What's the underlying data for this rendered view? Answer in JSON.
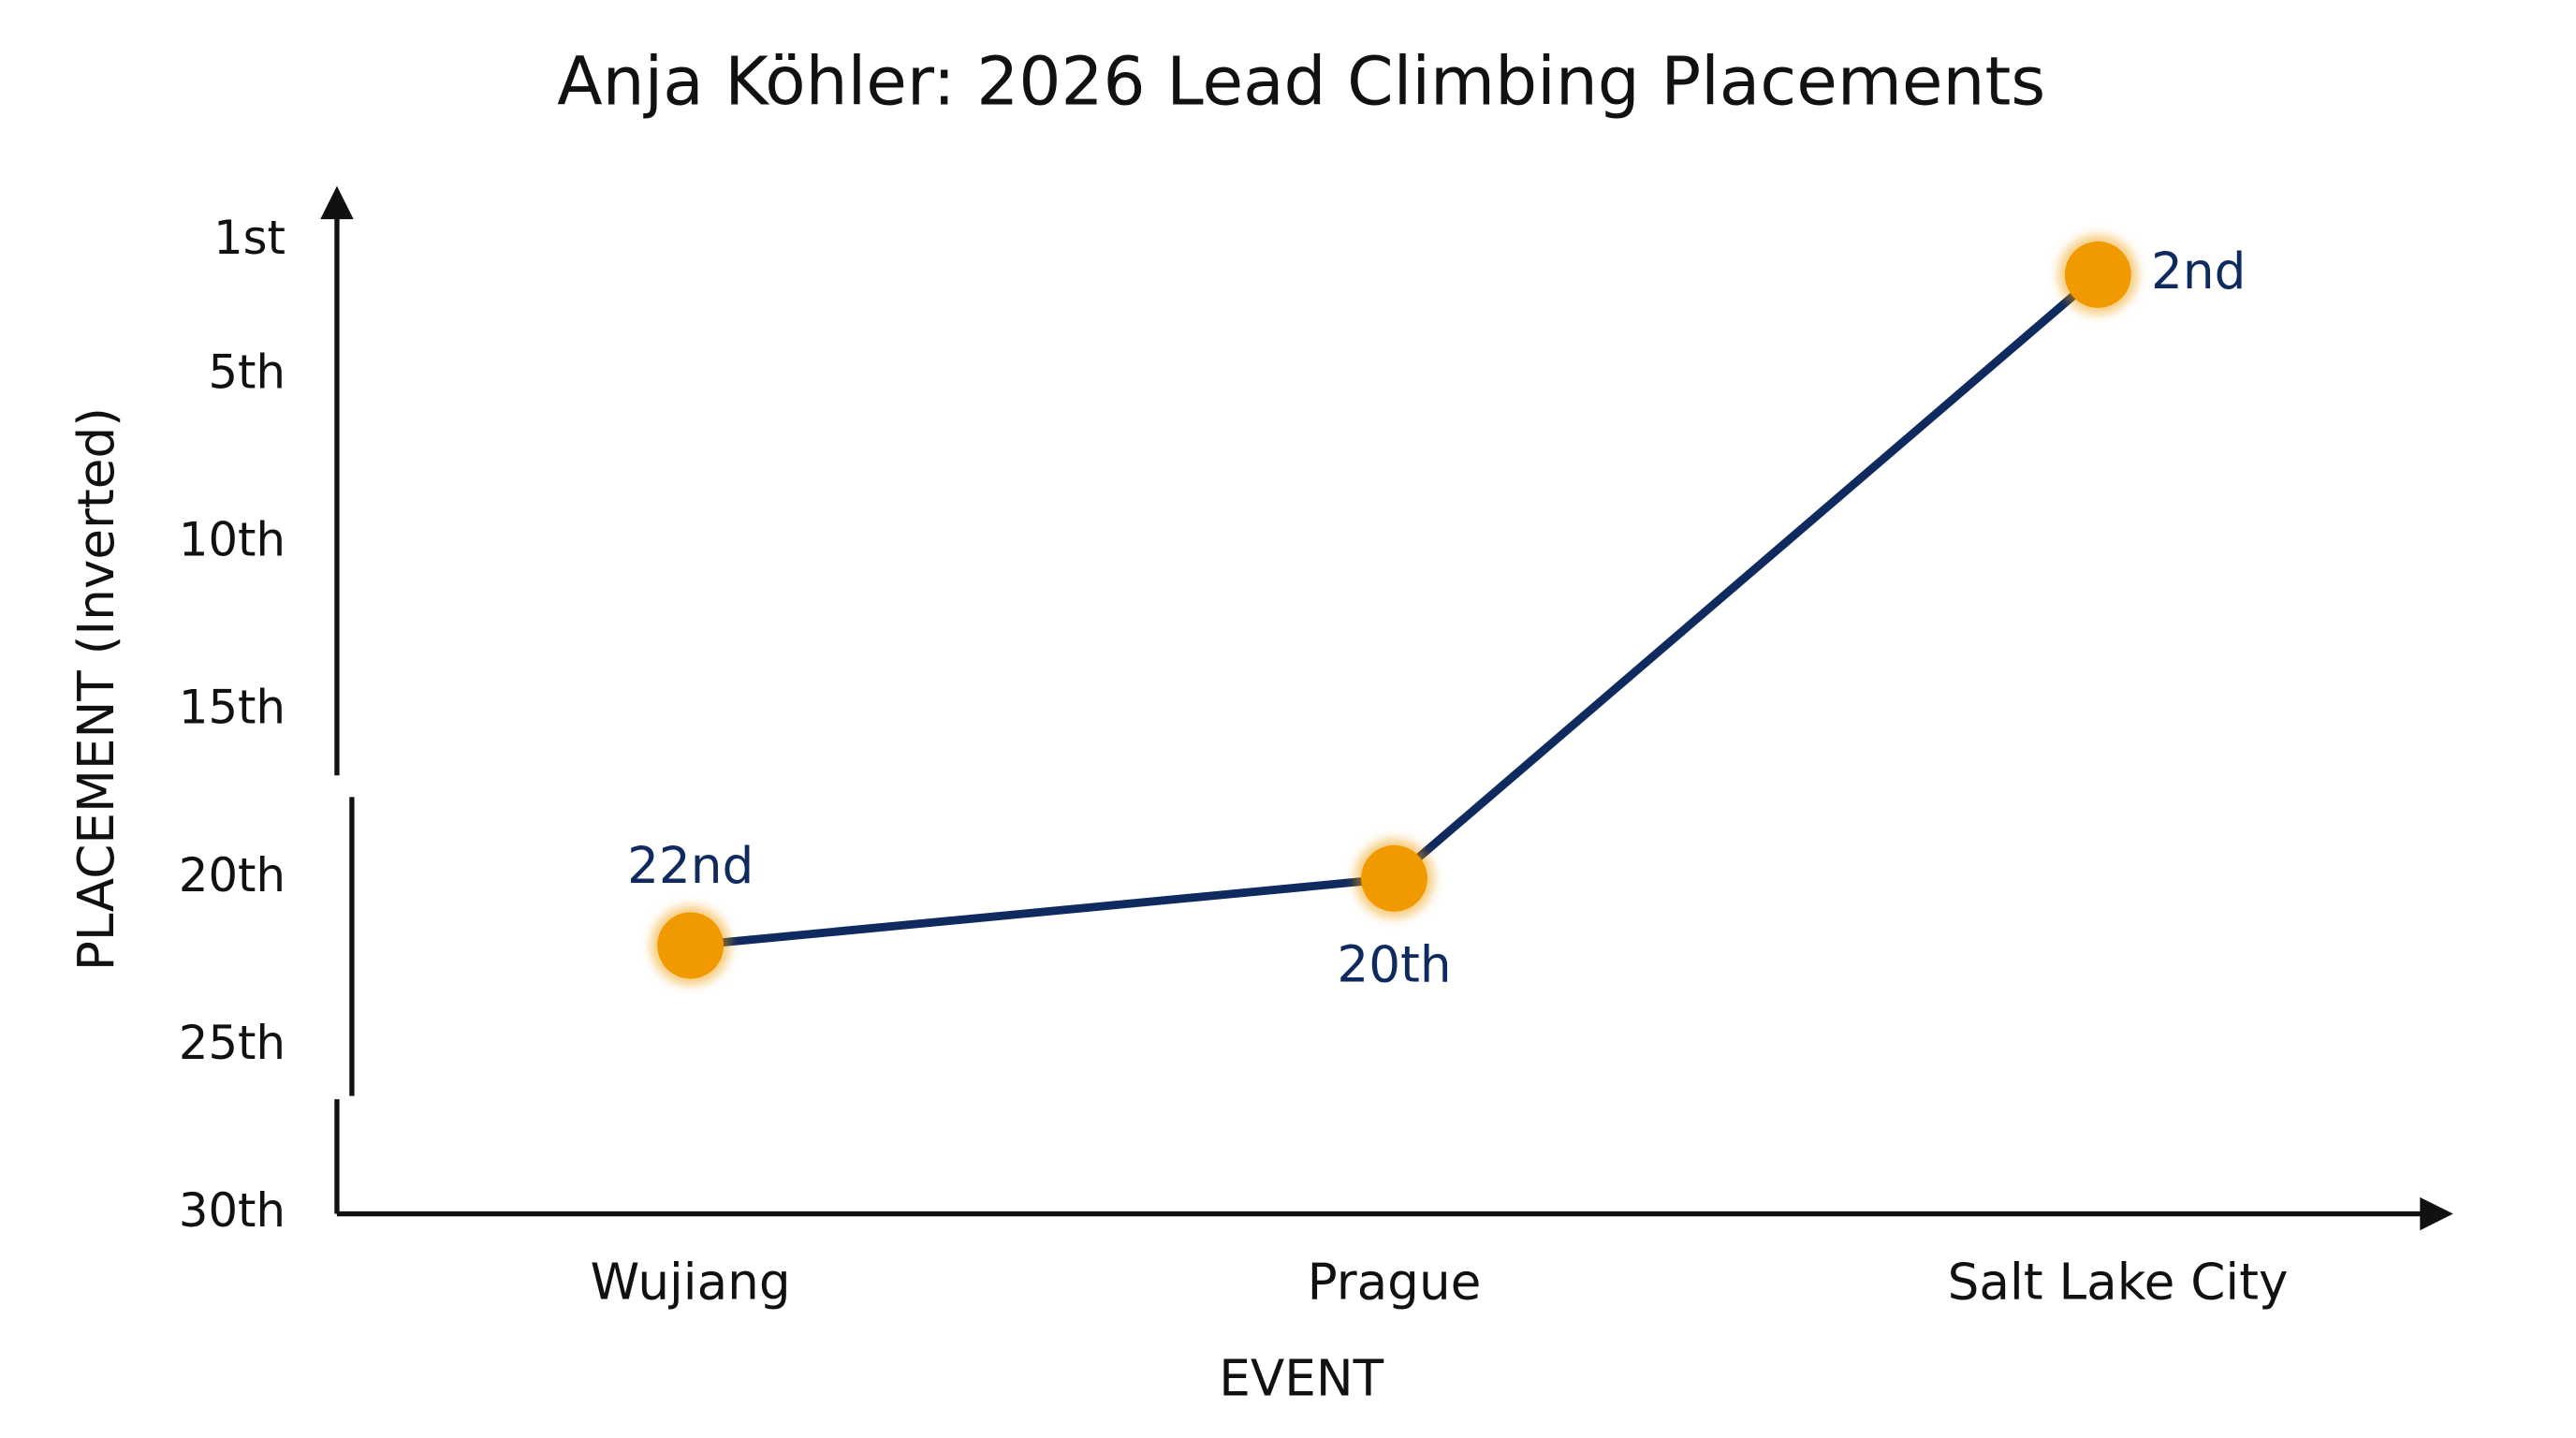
{
  "chart_data": {
    "type": "line",
    "title": "Anja Köhler: 2026 Lead Climbing Placements",
    "x_label": "EVENT",
    "y_label": "PLACEMENT (Inverted)",
    "categories": [
      "Wujiang",
      "Prague",
      "Salt Lake City"
    ],
    "values": [
      22,
      20,
      2
    ],
    "value_labels": [
      "22nd",
      "20th",
      "2nd"
    ],
    "color": "#0f2a5e",
    "marker_color": "#f09a00",
    "ylim": [
      0,
      30
    ],
    "inverted": true,
    "yticks": [
      {
        "value": 1,
        "label": "1st"
      },
      {
        "value": 5,
        "label": "5th"
      },
      {
        "value": 10,
        "label": "10th"
      },
      {
        "value": 15,
        "label": "15th"
      },
      {
        "value": 20,
        "label": "20th"
      },
      {
        "value": 25,
        "label": "25th"
      },
      {
        "value": 30,
        "label": "30th"
      }
    ],
    "grid": false
  }
}
